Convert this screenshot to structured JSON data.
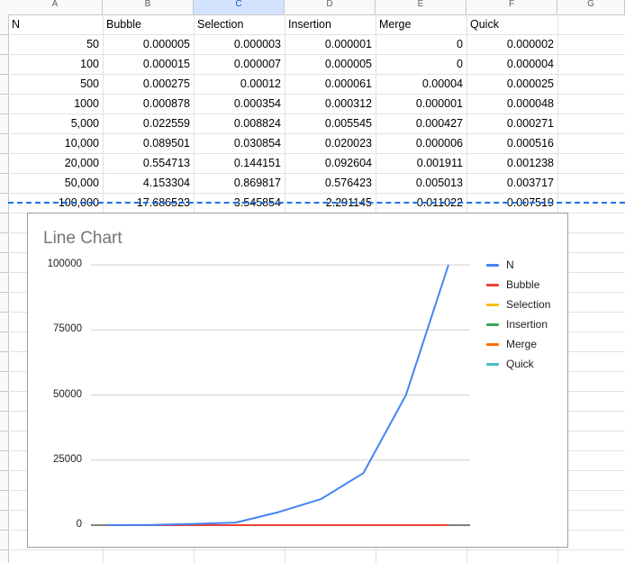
{
  "columns": [
    "A",
    "B",
    "C",
    "D",
    "E",
    "F",
    "G"
  ],
  "table": {
    "headers": [
      "N",
      "Bubble",
      "Selection",
      "Insertion",
      "Merge",
      "Quick"
    ],
    "rows": [
      [
        "50",
        "0.000005",
        "0.000003",
        "0.000001",
        "0",
        "0.000002"
      ],
      [
        "100",
        "0.000015",
        "0.000007",
        "0.000005",
        "0",
        "0.000004"
      ],
      [
        "500",
        "0.000275",
        "0.00012",
        "0.000061",
        "0.00004",
        "0.000025"
      ],
      [
        "1000",
        "0.000878",
        "0.000354",
        "0.000312",
        "0.000001",
        "0.000048"
      ],
      [
        "5,000",
        "0.022559",
        "0.008824",
        "0.005545",
        "0.000427",
        "0.000271"
      ],
      [
        "10,000",
        "0.089501",
        "0.030854",
        "0.020023",
        "0.000006",
        "0.000516"
      ],
      [
        "20,000",
        "0.554713",
        "0.144151",
        "0.092604",
        "0.001911",
        "0.001238"
      ],
      [
        "50,000",
        "4.153304",
        "0.869817",
        "0.576423",
        "0.005013",
        "0.003717"
      ],
      [
        "100,000",
        "17.686523",
        "3.545854",
        "2.291145",
        "0.011022",
        "0.007519"
      ]
    ]
  },
  "chart_data": {
    "type": "line",
    "title": "Line Chart",
    "x": [
      1,
      2,
      3,
      4,
      5,
      6,
      7,
      8,
      9
    ],
    "ylim": [
      0,
      100000
    ],
    "yticks": [
      "100000",
      "75000",
      "50000",
      "25000",
      "0"
    ],
    "grid": true,
    "legend_position": "right",
    "series": [
      {
        "name": "N",
        "color": "#4285f4",
        "values": [
          50,
          100,
          500,
          1000,
          5000,
          10000,
          20000,
          50000,
          100000
        ]
      },
      {
        "name": "Bubble",
        "color": "#ea4335",
        "values": [
          5e-06,
          1.5e-05,
          0.000275,
          0.000878,
          0.022559,
          0.089501,
          0.554713,
          4.153304,
          17.686523
        ]
      },
      {
        "name": "Selection",
        "color": "#fbbc04",
        "values": [
          3e-06,
          7e-06,
          0.00012,
          0.000354,
          0.008824,
          0.030854,
          0.144151,
          0.869817,
          3.545854
        ]
      },
      {
        "name": "Insertion",
        "color": "#34a853",
        "values": [
          1e-06,
          5e-06,
          6.1e-05,
          0.000312,
          0.005545,
          0.020023,
          0.092604,
          0.576423,
          2.291145
        ]
      },
      {
        "name": "Merge",
        "color": "#ff6d01",
        "values": [
          0,
          0,
          4e-05,
          1e-06,
          0.000427,
          6e-06,
          0.001911,
          0.005013,
          0.011022
        ]
      },
      {
        "name": "Quick",
        "color": "#46bdc6",
        "values": [
          2e-06,
          4e-06,
          2.5e-05,
          4.8e-05,
          0.000271,
          0.000516,
          0.001238,
          0.003717,
          0.007519
        ]
      }
    ]
  }
}
